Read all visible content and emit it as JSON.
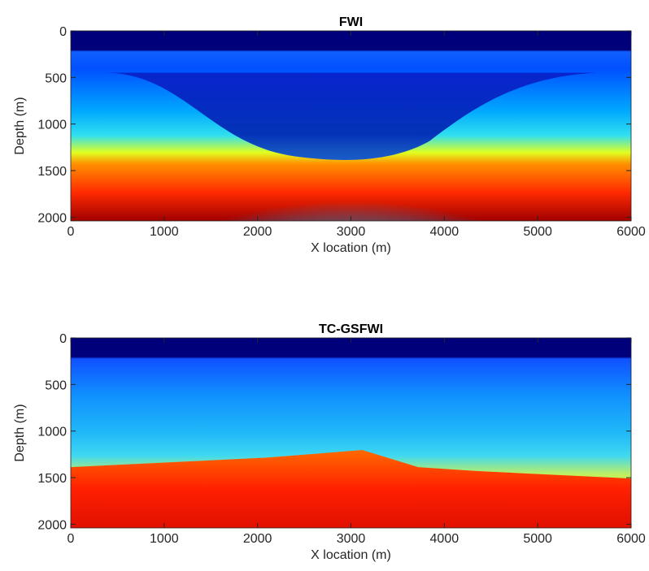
{
  "chart_data": [
    {
      "type": "heatmap",
      "title": "FWI",
      "xlabel": "X location (m)",
      "ylabel": "Depth (m)",
      "xlim": [
        0,
        6000
      ],
      "xticks": [
        0,
        1000,
        2000,
        3000,
        4000,
        5000,
        6000
      ],
      "ylim": [
        0,
        2040
      ],
      "yticks": [
        0,
        500,
        1000,
        1500,
        2000
      ],
      "y_reversed": true,
      "colormap": "jet"
    },
    {
      "type": "heatmap",
      "title": "TC-GSFWI",
      "xlabel": "X location (m)",
      "ylabel": "Depth (m)",
      "xlim": [
        0,
        6000
      ],
      "xticks": [
        0,
        1000,
        2000,
        3000,
        4000,
        5000,
        6000
      ],
      "ylim": [
        0,
        2040
      ],
      "yticks": [
        0,
        500,
        1000,
        1500,
        2000
      ],
      "y_reversed": true,
      "colormap": "jet"
    }
  ]
}
